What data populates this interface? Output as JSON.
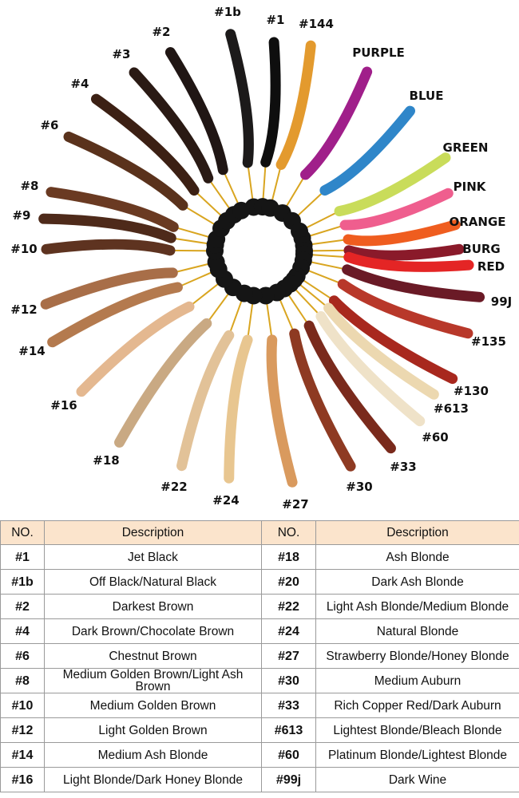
{
  "swatches": [
    {
      "label": "#1b",
      "color": "#1c1a1a"
    },
    {
      "label": "#1",
      "color": "#0e0e0e"
    },
    {
      "label": "#144",
      "color": "#e39a2e"
    },
    {
      "label": "PURPLE",
      "color": "#a01f8a"
    },
    {
      "label": "BLUE",
      "color": "#2f86c9"
    },
    {
      "label": "GREEN",
      "color": "#c9dc5a"
    },
    {
      "label": "PINK",
      "color": "#ef5e8e"
    },
    {
      "label": "ORANGE",
      "color": "#ef5d1f"
    },
    {
      "label": "BURG",
      "color": "#8a1a2a"
    },
    {
      "label": "RED",
      "color": "#e42525"
    },
    {
      "label": "99J",
      "color": "#6a1a26"
    },
    {
      "label": "#135",
      "color": "#b8382a"
    },
    {
      "label": "#130",
      "color": "#a8281e"
    },
    {
      "label": "#613",
      "color": "#ecd8b0"
    },
    {
      "label": "#60",
      "color": "#efe2c8"
    },
    {
      "label": "#33",
      "color": "#7a2a1c"
    },
    {
      "label": "#30",
      "color": "#8e3a22"
    },
    {
      "label": "#27",
      "color": "#d99a5e"
    },
    {
      "label": "#24",
      "color": "#e8c690"
    },
    {
      "label": "#22",
      "color": "#e2c298"
    },
    {
      "label": "#18",
      "color": "#c9a983"
    },
    {
      "label": "#16",
      "color": "#e4b890"
    },
    {
      "label": "#14",
      "color": "#b47a4e"
    },
    {
      "label": "#12",
      "color": "#a86e48"
    },
    {
      "label": "#10",
      "color": "#5e3320"
    },
    {
      "label": "#9",
      "color": "#4e2a1a"
    },
    {
      "label": "#8",
      "color": "#6a3a22"
    },
    {
      "label": "#6",
      "color": "#5a321c"
    },
    {
      "label": "#4",
      "color": "#3c2014"
    },
    {
      "label": "#3",
      "color": "#2a1a14"
    },
    {
      "label": "#2",
      "color": "#201614"
    }
  ],
  "table": {
    "headers": [
      "NO.",
      "Description",
      "NO.",
      "Description"
    ],
    "rows": [
      [
        "#1",
        "Jet Black",
        "#18",
        "Ash Blonde"
      ],
      [
        "#1b",
        "Off Black/Natural Black",
        "#20",
        "Dark Ash Blonde"
      ],
      [
        "#2",
        "Darkest Brown",
        "#22",
        "Light Ash Blonde/Medium Blonde"
      ],
      [
        "#4",
        "Dark Brown/Chocolate Brown",
        "#24",
        "Natural Blonde"
      ],
      [
        "#6",
        "Chestnut Brown",
        "#27",
        "Strawberry Blonde/Honey Blonde"
      ],
      [
        "#8",
        "Medium Golden Brown/Light Ash Brown",
        "#30",
        "Medium Auburn"
      ],
      [
        "#10",
        "Medium Golden Brown",
        "#33",
        "Rich Copper Red/Dark Auburn"
      ],
      [
        "#12",
        "Light Golden Brown",
        "#613",
        "Lightest Blonde/Bleach Blonde"
      ],
      [
        "#14",
        "Medium Ash Blonde",
        "#60",
        "Platinum Blonde/Lightest Blonde"
      ],
      [
        "#16",
        "Light Blonde/Dark Honey Blonde",
        "#99j",
        "Dark Wine"
      ]
    ]
  }
}
